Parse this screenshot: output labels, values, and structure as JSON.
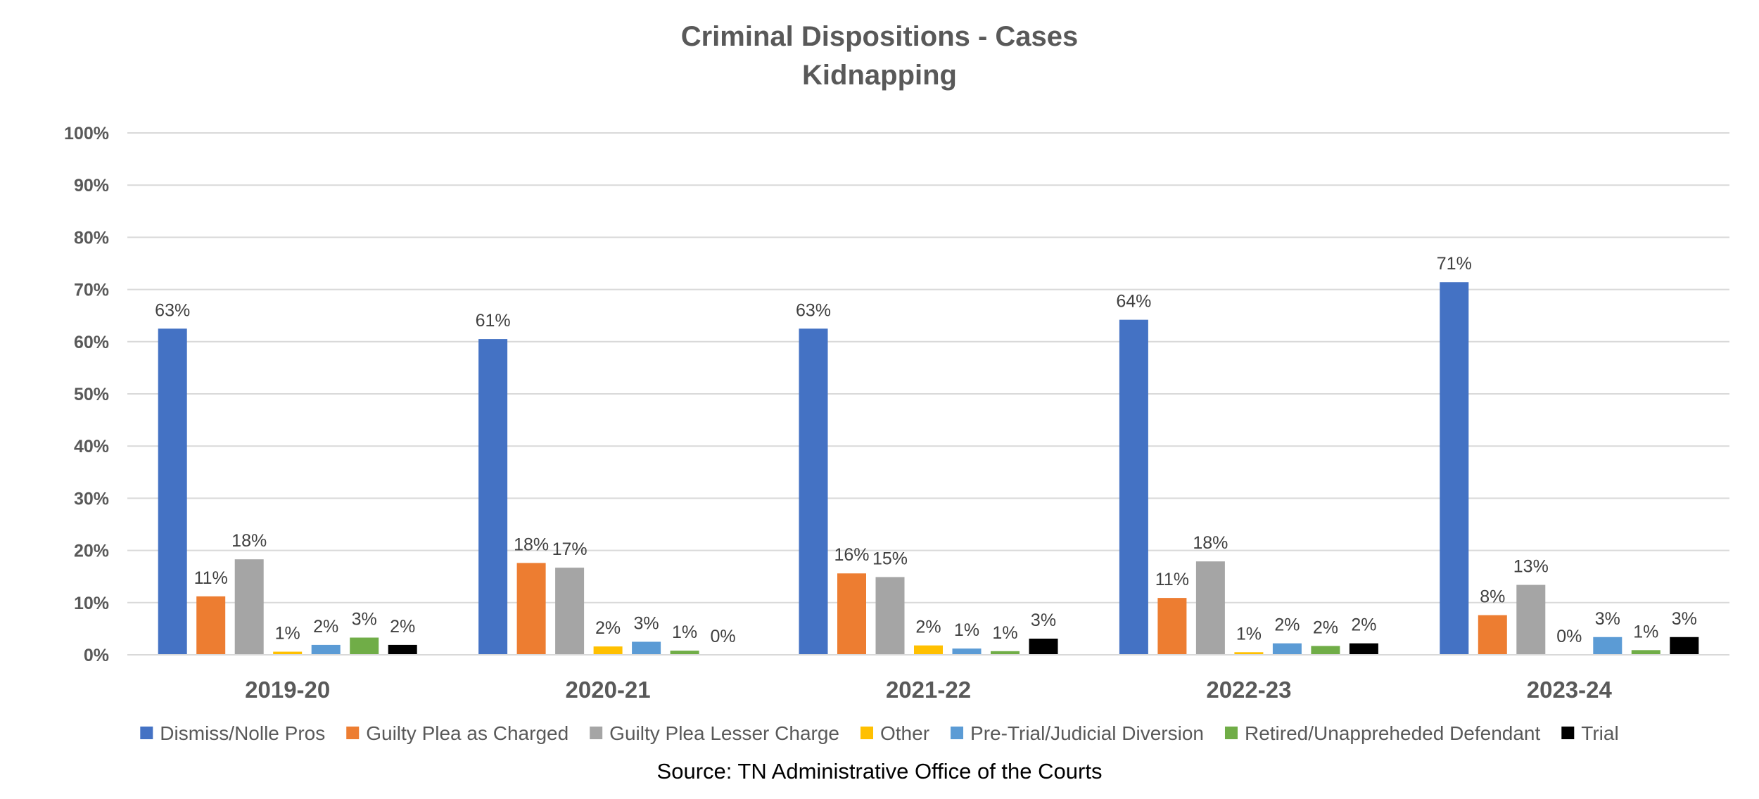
{
  "chart_data": {
    "type": "bar",
    "title": "Criminal Dispositions - Cases",
    "subtitle": "Kidnapping",
    "xlabel": "",
    "ylabel": "",
    "ylim": [
      0,
      100
    ],
    "yticks": [
      "0%",
      "10%",
      "20%",
      "30%",
      "40%",
      "50%",
      "60%",
      "70%",
      "80%",
      "90%",
      "100%"
    ],
    "grid": true,
    "legend_position": "bottom",
    "categories": [
      "2019-20",
      "2020-21",
      "2021-22",
      "2022-23",
      "2023-24"
    ],
    "series": [
      {
        "name": "Dismiss/Nolle Pros",
        "color": "#4472C4",
        "values": [
          62.5,
          60.5,
          62.5,
          64.2,
          71.4
        ],
        "labels": [
          "63%",
          "61%",
          "63%",
          "64%",
          "71%"
        ]
      },
      {
        "name": "Guilty Plea as Charged",
        "color": "#ED7D31",
        "values": [
          11.2,
          17.6,
          15.6,
          10.9,
          7.6
        ],
        "labels": [
          "11%",
          "18%",
          "16%",
          "11%",
          "8%"
        ]
      },
      {
        "name": "Guilty Plea Lesser Charge",
        "color": "#A5A5A5",
        "values": [
          18.3,
          16.7,
          14.9,
          17.9,
          13.4
        ],
        "labels": [
          "18%",
          "17%",
          "15%",
          "18%",
          "13%"
        ]
      },
      {
        "name": "Other",
        "color": "#FFC000",
        "values": [
          0.6,
          1.6,
          1.8,
          0.5,
          0.0
        ],
        "labels": [
          "1%",
          "2%",
          "2%",
          "1%",
          "0%"
        ]
      },
      {
        "name": "Pre-Trial/Judicial Diversion",
        "color": "#5B9BD5",
        "values": [
          1.9,
          2.5,
          1.2,
          2.2,
          3.4
        ],
        "labels": [
          "2%",
          "3%",
          "1%",
          "2%",
          "3%"
        ]
      },
      {
        "name": "Retired/Unappreheded Defendant",
        "color": "#70AD47",
        "values": [
          3.3,
          0.8,
          0.7,
          1.7,
          0.9
        ],
        "labels": [
          "3%",
          "1%",
          "1%",
          "2%",
          "1%"
        ]
      },
      {
        "name": "Trial",
        "color": "#000000",
        "values": [
          1.9,
          0.0,
          3.1,
          2.2,
          3.4
        ],
        "labels": [
          "2%",
          "0%",
          "3%",
          "2%",
          "3%"
        ]
      }
    ],
    "source": "Source: TN Administrative Office of the Courts"
  }
}
